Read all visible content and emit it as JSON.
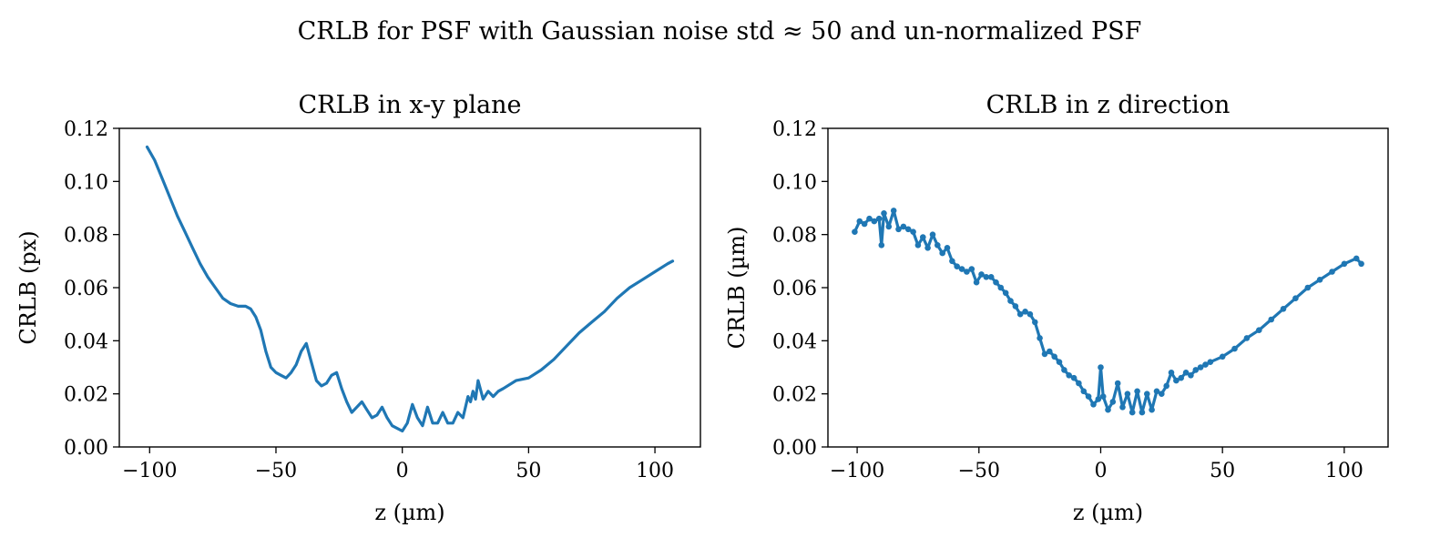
{
  "figure": {
    "suptitle": "CRLB for PSF with Gaussian noise std ≈ 50 and un-normalized PSF"
  },
  "series_color": "#1f77b4",
  "chart_data": [
    {
      "type": "line",
      "title": "CRLB in x-y plane",
      "xlabel": "z (µm)",
      "ylabel": "CRLB (px)",
      "xlim": [
        -112,
        118
      ],
      "ylim": [
        0,
        0.12
      ],
      "xticks": [
        -100,
        -50,
        0,
        50,
        100
      ],
      "xtick_labels": [
        "−100",
        "−50",
        "0",
        "50",
        "100"
      ],
      "yticks": [
        0,
        0.02,
        0.04,
        0.06,
        0.08,
        0.1,
        0.12
      ],
      "ytick_labels": [
        "0.00",
        "0.02",
        "0.04",
        "0.06",
        "0.08",
        "0.10",
        "0.12"
      ],
      "grid": false,
      "markers": false,
      "x": [
        -101,
        -98,
        -95,
        -92,
        -89,
        -86,
        -83,
        -80,
        -77,
        -74,
        -71,
        -68,
        -65,
        -62,
        -60,
        -58,
        -56,
        -54,
        -52,
        -50,
        -48,
        -46,
        -44,
        -42,
        -40,
        -38,
        -36,
        -34,
        -32,
        -30,
        -28,
        -26,
        -24,
        -22,
        -20,
        -18,
        -16,
        -14,
        -12,
        -10,
        -8,
        -6,
        -4,
        -2,
        0,
        2,
        4,
        6,
        8,
        10,
        12,
        14,
        16,
        18,
        20,
        22,
        24,
        26,
        27,
        28,
        29,
        30,
        32,
        34,
        36,
        38,
        40,
        45,
        50,
        55,
        60,
        65,
        70,
        75,
        80,
        85,
        90,
        95,
        100,
        105,
        107
      ],
      "y": [
        0.113,
        0.108,
        0.101,
        0.094,
        0.087,
        0.081,
        0.075,
        0.069,
        0.064,
        0.06,
        0.056,
        0.054,
        0.053,
        0.053,
        0.052,
        0.049,
        0.044,
        0.036,
        0.03,
        0.028,
        0.027,
        0.026,
        0.028,
        0.031,
        0.036,
        0.039,
        0.032,
        0.025,
        0.023,
        0.024,
        0.027,
        0.028,
        0.022,
        0.017,
        0.013,
        0.015,
        0.017,
        0.014,
        0.011,
        0.012,
        0.015,
        0.011,
        0.008,
        0.007,
        0.006,
        0.009,
        0.016,
        0.011,
        0.008,
        0.015,
        0.009,
        0.009,
        0.013,
        0.009,
        0.009,
        0.013,
        0.011,
        0.019,
        0.017,
        0.021,
        0.018,
        0.025,
        0.018,
        0.021,
        0.019,
        0.021,
        0.022,
        0.025,
        0.026,
        0.029,
        0.033,
        0.038,
        0.043,
        0.047,
        0.051,
        0.056,
        0.06,
        0.063,
        0.066,
        0.069,
        0.07
      ]
    },
    {
      "type": "line",
      "title": "CRLB in z direction",
      "xlabel": "z (µm)",
      "ylabel": "CRLB (µm)",
      "xlim": [
        -112,
        118
      ],
      "ylim": [
        0,
        0.12
      ],
      "xticks": [
        -100,
        -50,
        0,
        50,
        100
      ],
      "xtick_labels": [
        "−100",
        "−50",
        "0",
        "50",
        "100"
      ],
      "yticks": [
        0,
        0.02,
        0.04,
        0.06,
        0.08,
        0.1,
        0.12
      ],
      "ytick_labels": [
        "0.00",
        "0.02",
        "0.04",
        "0.06",
        "0.08",
        "0.10",
        "0.12"
      ],
      "grid": false,
      "markers": true,
      "x": [
        -101,
        -99,
        -97,
        -95,
        -93,
        -91,
        -90,
        -89,
        -87,
        -85,
        -83,
        -81,
        -79,
        -77,
        -75,
        -73,
        -71,
        -69,
        -67,
        -65,
        -63,
        -61,
        -59,
        -57,
        -55,
        -53,
        -51,
        -49,
        -47,
        -45,
        -43,
        -41,
        -39,
        -37,
        -35,
        -33,
        -31,
        -29,
        -27,
        -25,
        -23,
        -21,
        -19,
        -17,
        -15,
        -13,
        -11,
        -9,
        -7,
        -5,
        -3,
        -1,
        0,
        1,
        3,
        5,
        7,
        9,
        11,
        13,
        15,
        17,
        19,
        21,
        23,
        25,
        27,
        29,
        31,
        33,
        35,
        37,
        39,
        41,
        43,
        45,
        50,
        55,
        60,
        65,
        70,
        75,
        80,
        85,
        90,
        95,
        100,
        105,
        107
      ],
      "y": [
        0.081,
        0.085,
        0.084,
        0.086,
        0.085,
        0.086,
        0.076,
        0.088,
        0.083,
        0.089,
        0.082,
        0.083,
        0.082,
        0.081,
        0.076,
        0.079,
        0.075,
        0.08,
        0.076,
        0.073,
        0.075,
        0.07,
        0.068,
        0.067,
        0.066,
        0.067,
        0.062,
        0.065,
        0.064,
        0.064,
        0.062,
        0.06,
        0.058,
        0.055,
        0.053,
        0.05,
        0.051,
        0.05,
        0.047,
        0.041,
        0.035,
        0.036,
        0.034,
        0.032,
        0.029,
        0.027,
        0.026,
        0.024,
        0.021,
        0.019,
        0.016,
        0.018,
        0.03,
        0.019,
        0.014,
        0.017,
        0.024,
        0.015,
        0.02,
        0.013,
        0.021,
        0.013,
        0.02,
        0.014,
        0.021,
        0.02,
        0.023,
        0.028,
        0.025,
        0.026,
        0.028,
        0.027,
        0.029,
        0.03,
        0.031,
        0.032,
        0.034,
        0.037,
        0.041,
        0.044,
        0.048,
        0.052,
        0.056,
        0.06,
        0.063,
        0.066,
        0.069,
        0.071,
        0.069
      ]
    }
  ]
}
